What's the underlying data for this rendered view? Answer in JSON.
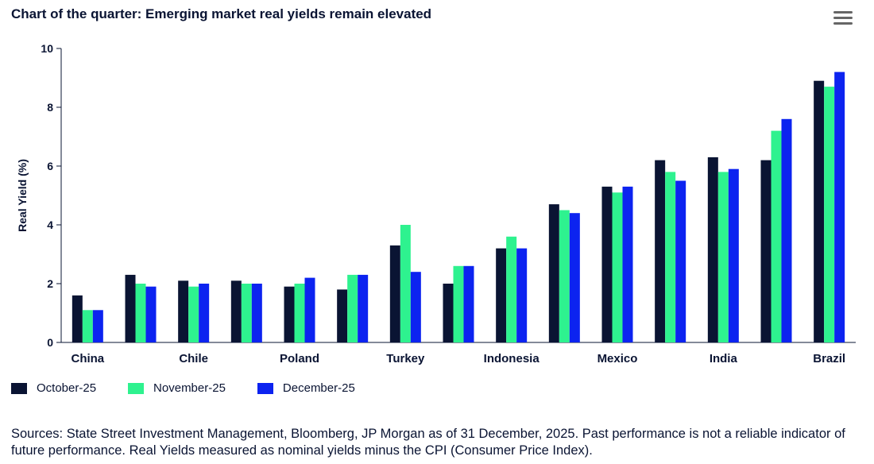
{
  "title": "Chart of the quarter: Emerging market real yields remain elevated",
  "menu_icon": "hamburger-menu-icon",
  "chart_data": {
    "type": "bar",
    "ylabel": "Real Yield (%)",
    "ylim": [
      0,
      10
    ],
    "yticks": [
      0,
      2,
      4,
      6,
      8,
      10
    ],
    "categories": [
      "China",
      "",
      "Chile",
      "",
      "Poland",
      "",
      "Turkey",
      "",
      "Indonesia",
      "",
      "Mexico",
      "",
      "India",
      "",
      "Brazil"
    ],
    "series": [
      {
        "name": "October-25",
        "color": "#0a1433",
        "values": [
          1.6,
          2.3,
          2.1,
          2.1,
          1.9,
          1.8,
          3.3,
          2.0,
          3.2,
          4.7,
          5.3,
          6.2,
          6.3,
          6.2,
          8.9
        ]
      },
      {
        "name": "November-25",
        "color": "#2ef28f",
        "values": [
          1.1,
          2.0,
          1.9,
          2.0,
          2.0,
          2.3,
          4.0,
          2.6,
          3.6,
          4.5,
          5.1,
          5.8,
          5.8,
          7.2,
          8.7
        ]
      },
      {
        "name": "December-25",
        "color": "#0c23f0",
        "values": [
          1.1,
          1.9,
          2.0,
          2.0,
          2.2,
          2.3,
          2.4,
          2.6,
          3.2,
          4.4,
          5.3,
          5.5,
          5.9,
          7.6,
          9.2
        ]
      }
    ],
    "legend_position": "bottom-left",
    "grid": false
  },
  "source_text": "Sources: State Street Investment Management, Bloomberg, JP Morgan as of 31 December, 2025. Past performance is not a reliable indicator of future performance. Real Yields measured as nominal yields minus the CPI (Consumer Price Index)."
}
